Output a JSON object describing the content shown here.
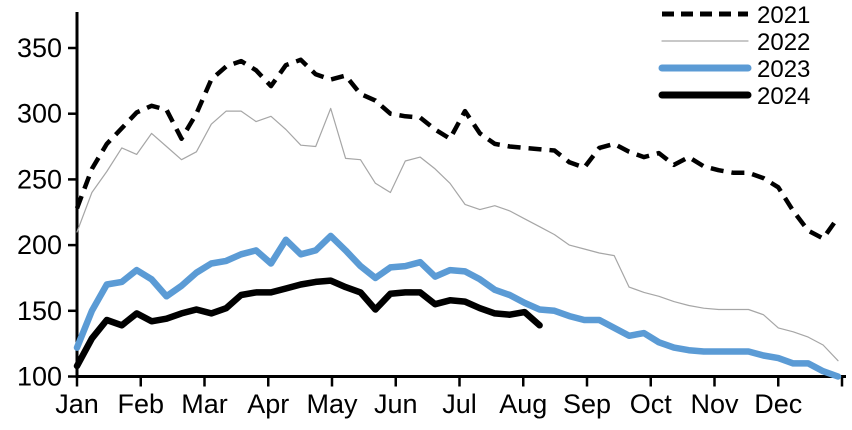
{
  "chart_data": {
    "type": "line",
    "title": "",
    "x_unit": "weekly (52 points per year)",
    "x_axis": {
      "tick_labels": [
        "Jan",
        "Feb",
        "Mar",
        "Apr",
        "May",
        "Jun",
        "Jul",
        "Aug",
        "Sep",
        "Oct",
        "Nov",
        "Dec"
      ]
    },
    "y_axis": {
      "ticks": [
        350,
        300,
        250,
        200,
        150,
        100
      ],
      "range": [
        100,
        375
      ],
      "grid": false
    },
    "legend": {
      "position": "top-right",
      "entries": [
        "2021",
        "2022",
        "2023",
        "2024"
      ]
    },
    "series": [
      {
        "name": "2021",
        "style": "dashed",
        "color": "#000000",
        "values": [
          228,
          258,
          277,
          289,
          301,
          306,
          303,
          281,
          300,
          326,
          336,
          340,
          333,
          321,
          337,
          341,
          330,
          326,
          329,
          315,
          310,
          300,
          298,
          297,
          288,
          281,
          302,
          285,
          277,
          275,
          274,
          273,
          272,
          263,
          259,
          274,
          277,
          271,
          267,
          270,
          261,
          267,
          260,
          257,
          255,
          255,
          251,
          244,
          226,
          211,
          205,
          221
        ]
      },
      {
        "name": "2022",
        "style": "thin",
        "color": "#a6a6a6",
        "values": [
          210,
          240,
          256,
          274,
          269,
          285,
          275,
          265,
          271,
          292,
          302,
          302,
          294,
          298,
          288,
          276,
          275,
          304,
          266,
          265,
          247,
          240,
          264,
          267,
          258,
          247,
          231,
          227,
          230,
          226,
          220,
          214,
          208,
          200,
          197,
          194,
          192,
          168,
          164,
          161,
          157,
          154,
          152,
          151,
          151,
          151,
          147,
          137,
          134,
          130,
          124,
          112
        ]
      },
      {
        "name": "2023",
        "style": "solid-thick",
        "color": "#5b9bd5",
        "values": [
          122,
          150,
          170,
          172,
          181,
          174,
          161,
          169,
          179,
          186,
          188,
          193,
          196,
          186,
          204,
          193,
          196,
          207,
          196,
          184,
          175,
          183,
          184,
          187,
          176,
          181,
          180,
          174,
          166,
          162,
          156,
          151,
          150,
          146,
          143,
          143,
          137,
          131,
          133,
          126,
          122,
          120,
          119,
          119,
          119,
          119,
          116,
          114,
          110,
          110,
          104,
          100
        ]
      },
      {
        "name": "2024",
        "style": "solid-thick",
        "color": "#000000",
        "values": [
          108,
          129,
          143,
          139,
          148,
          142,
          144,
          148,
          151,
          148,
          152,
          162,
          164,
          164,
          167,
          170,
          172,
          173,
          168,
          164,
          151,
          163,
          164,
          164,
          155,
          158,
          157,
          152,
          148,
          147,
          149,
          139
        ]
      }
    ]
  }
}
